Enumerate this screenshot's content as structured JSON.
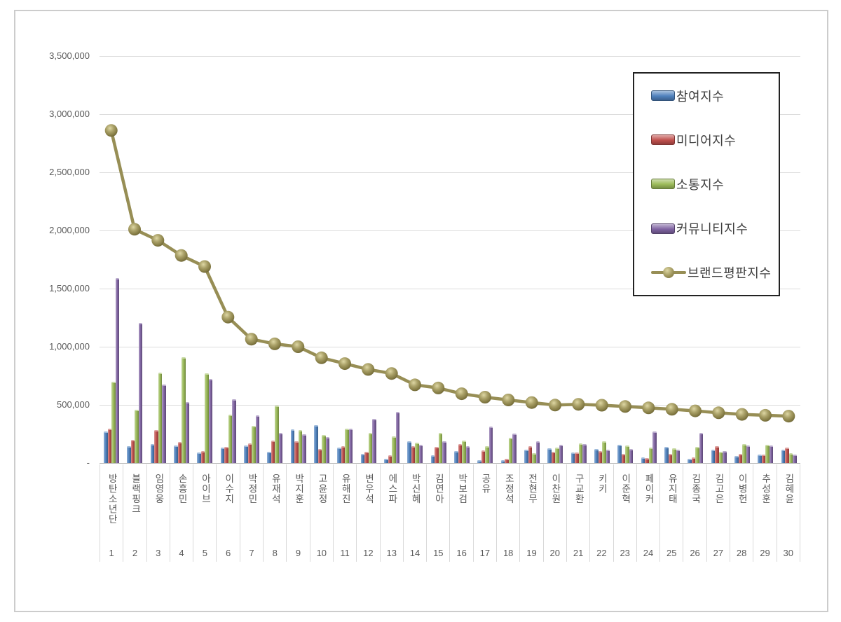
{
  "chart_data": {
    "type": "bar",
    "subtype": "grouped-bars-with-line-overlay",
    "title": "",
    "categories": [
      "방탄소년단",
      "블랙핑크",
      "임영웅",
      "손흥민",
      "아이브",
      "이수지",
      "박정민",
      "유재석",
      "박지훈",
      "고윤정",
      "유해진",
      "변우석",
      "에스파",
      "박신혜",
      "김연아",
      "박보검",
      "공유",
      "조정석",
      "전현무",
      "이찬원",
      "구교환",
      "키키",
      "이준혁",
      "페이커",
      "유지태",
      "김종국",
      "김고은",
      "이병헌",
      "추성훈",
      "김혜윤"
    ],
    "ranks": [
      "1",
      "2",
      "3",
      "4",
      "5",
      "6",
      "7",
      "8",
      "9",
      "10",
      "11",
      "12",
      "13",
      "14",
      "15",
      "16",
      "17",
      "18",
      "19",
      "20",
      "21",
      "22",
      "23",
      "24",
      "25",
      "26",
      "27",
      "28",
      "29",
      "30"
    ],
    "series": [
      {
        "name": "참여지수",
        "slug": "participation-index",
        "type": "bar",
        "color": "#4F81BD",
        "values": [
          260000,
          135000,
          150000,
          140000,
          80000,
          120000,
          140000,
          85000,
          280000,
          312000,
          120000,
          66000,
          25000,
          175000,
          55000,
          90000,
          15000,
          15000,
          100000,
          112000,
          76000,
          106000,
          146000,
          36000,
          128000,
          22000,
          102000,
          48000,
          62000,
          102000
        ]
      },
      {
        "name": "미디어지수",
        "slug": "media-index",
        "type": "bar",
        "color": "#C0504D",
        "values": [
          285000,
          185000,
          270000,
          170000,
          90000,
          125000,
          155000,
          180000,
          172000,
          110000,
          130000,
          85000,
          55000,
          135000,
          125000,
          150000,
          95000,
          25000,
          135000,
          86000,
          80000,
          92000,
          66000,
          32000,
          68000,
          38000,
          132000,
          66000,
          58000,
          118000
        ]
      },
      {
        "name": "소통지수",
        "slug": "communication-index",
        "type": "bar",
        "color": "#9BBB59",
        "values": [
          685000,
          445000,
          765000,
          900000,
          760000,
          405000,
          310000,
          480000,
          270000,
          226000,
          286000,
          245000,
          215000,
          160000,
          245000,
          180000,
          130000,
          205000,
          72000,
          120000,
          156000,
          176000,
          136000,
          120000,
          112000,
          126000,
          86000,
          152000,
          142000,
          74000
        ]
      },
      {
        "name": "커뮤니티지수",
        "slug": "community-index",
        "type": "bar",
        "color": "#8064A2",
        "values": [
          1580000,
          1195000,
          665000,
          515000,
          710000,
          535000,
          400000,
          250000,
          236000,
          212000,
          282000,
          370000,
          430000,
          145000,
          175000,
          135000,
          300000,
          240000,
          175000,
          146000,
          152000,
          100000,
          106000,
          260000,
          102000,
          246000,
          92000,
          136000,
          136000,
          62000
        ]
      },
      {
        "name": "브랜드평판지수",
        "slug": "brand-reputation-index",
        "type": "line",
        "color": "#978E55",
        "values": [
          2860000,
          2010000,
          1915000,
          1785000,
          1690000,
          1255000,
          1065000,
          1025000,
          1000000,
          905000,
          855000,
          805000,
          770000,
          672000,
          645000,
          596000,
          566000,
          542000,
          520000,
          498000,
          505000,
          497000,
          486000,
          474000,
          462000,
          448000,
          432000,
          418000,
          410000,
          403000
        ]
      }
    ],
    "y_axis": {
      "min": 0,
      "max": 3500000,
      "tick_interval": 500000,
      "tick_labels": [
        "3,500,000",
        "3,000,000",
        "2,500,000",
        "2,000,000",
        "1,500,000",
        "1,000,000",
        "500,000",
        "-"
      ]
    },
    "legend_position": "top-right",
    "grid": true
  }
}
